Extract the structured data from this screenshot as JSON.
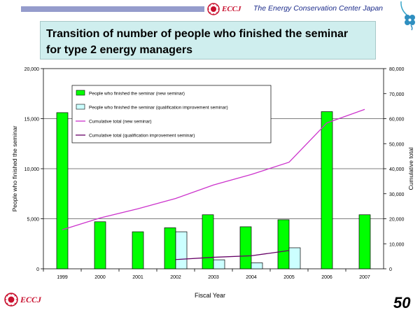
{
  "header": {
    "logo_text": "ECCJ",
    "org_name": "The Energy Conservation Center Japan"
  },
  "footer": {
    "logo_text": "ECCJ",
    "page_number": "50"
  },
  "colors": {
    "bar_new": "#00ff00",
    "bar_qual": "#ccffff",
    "line_new": "#cc33cc",
    "line_qual": "#660066",
    "title_bg": "#cfeeee",
    "logo_red": "#c8102e"
  },
  "chart_data": {
    "type": "bar",
    "title": "Transition of number of people who finished the seminar for type 2 energy managers",
    "title_lines": [
      "Transition of number of people who finished the seminar",
      "for type 2 energy managers"
    ],
    "xlabel": "Fiscal Year",
    "ylabel": "People who finished the seminar",
    "y2label": "Cumulative total",
    "categories": [
      "1999",
      "2000",
      "2001",
      "2002",
      "2003",
      "2004",
      "2005",
      "2006",
      "2007"
    ],
    "ylim": [
      0,
      20000
    ],
    "y2lim": [
      0,
      80000
    ],
    "yticks": [
      "0",
      "5,000",
      "10,000",
      "15,000",
      "20,000"
    ],
    "y2ticks": [
      "0",
      "10,000",
      "20,000",
      "30,000",
      "40,000",
      "50,000",
      "60,000",
      "70,000",
      "80,000"
    ],
    "grid": "horizontal",
    "legend_position": "top-left",
    "series": [
      {
        "name": "People who finished the seminar (new seminar)",
        "kind": "bar",
        "axis": "left",
        "values": [
          15600,
          4700,
          3700,
          4100,
          5400,
          4200,
          4900,
          15700,
          5400
        ]
      },
      {
        "name": "People who finished the seminar (qualification improvement seminar)",
        "kind": "bar",
        "axis": "left",
        "values": [
          null,
          null,
          null,
          3700,
          900,
          600,
          2100,
          null,
          null
        ]
      },
      {
        "name": "Cumulative total (new seminar)",
        "kind": "line",
        "axis": "right",
        "values": [
          15600,
          20300,
          24000,
          28100,
          33500,
          37700,
          42600,
          58300,
          63700
        ]
      },
      {
        "name": "Cumulative total (qualification improvement seminar)",
        "kind": "line",
        "axis": "right",
        "values": [
          null,
          null,
          null,
          3700,
          4600,
          5200,
          7300,
          null,
          null
        ]
      }
    ]
  }
}
